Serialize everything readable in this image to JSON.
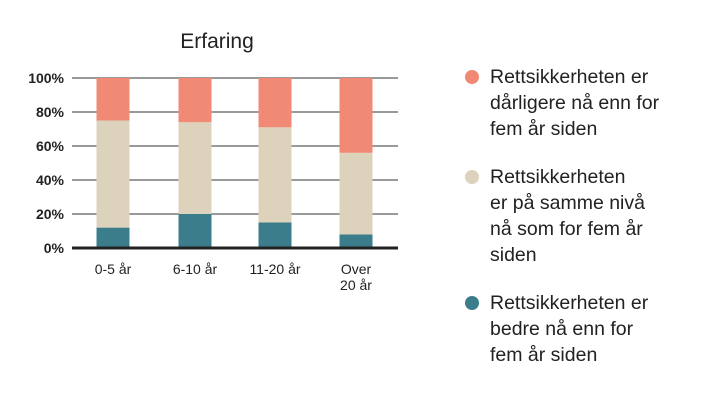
{
  "colors": {
    "worse": "#f08a74",
    "same": "#ddd2bb",
    "better": "#3b7d8b",
    "grid": "#333333",
    "axis": "#222222"
  },
  "legend": {
    "items": [
      {
        "key": "worse",
        "lines": [
          "Rettsikkerheten er",
          "dårligere nå enn for",
          "fem år siden"
        ]
      },
      {
        "key": "same",
        "lines": [
          "Rettsikkerheten",
          "er på samme nivå",
          "nå som for fem år",
          "siden"
        ]
      },
      {
        "key": "better",
        "lines": [
          "Rettsikkerheten er",
          "bedre nå enn for",
          "fem år siden"
        ]
      }
    ]
  },
  "chart_data": {
    "type": "bar",
    "stacked": true,
    "title": "Erfaring",
    "categories": [
      [
        "0-5 år"
      ],
      [
        "6-10 år"
      ],
      [
        "11-20 år"
      ],
      [
        "Over",
        "20 år"
      ]
    ],
    "series": [
      {
        "key": "better",
        "values": [
          12,
          20,
          15,
          8
        ]
      },
      {
        "key": "same",
        "values": [
          63,
          54,
          56,
          48
        ]
      },
      {
        "key": "worse",
        "values": [
          25,
          26,
          29,
          44
        ]
      }
    ],
    "yticks": [
      "0%",
      "20%",
      "40%",
      "60%",
      "80%",
      "100%"
    ],
    "ylim": [
      0,
      100
    ],
    "grid": true,
    "legend_position": "right"
  }
}
